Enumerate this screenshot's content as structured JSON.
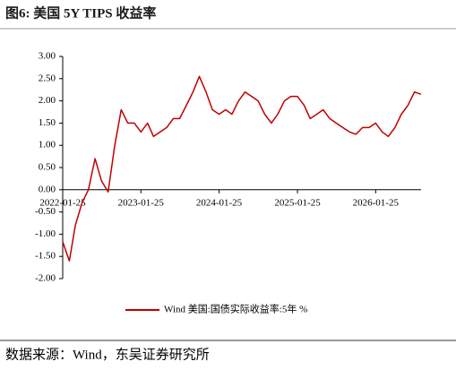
{
  "title": "图6:  美国 5Y TIPS 收益率",
  "source": "数据来源：Wind，东吴证券研究所",
  "chart_data": {
    "type": "line",
    "x": [
      "2022-01-25",
      "2022-02-25",
      "2022-03-25",
      "2022-04-25",
      "2022-05-25",
      "2022-06-25",
      "2022-07-25",
      "2022-08-25",
      "2022-09-25",
      "2022-10-25",
      "2022-11-25",
      "2022-12-25",
      "2023-01-25",
      "2023-02-25",
      "2023-03-25",
      "2023-04-25",
      "2023-05-25",
      "2023-06-25",
      "2023-07-25",
      "2023-08-25",
      "2023-09-25",
      "2023-10-25",
      "2023-11-25",
      "2023-12-25",
      "2024-01-25",
      "2024-02-25",
      "2024-03-25",
      "2024-04-25",
      "2024-05-25",
      "2024-06-25",
      "2024-07-25",
      "2024-08-25",
      "2024-09-25",
      "2024-10-25",
      "2024-11-25",
      "2024-12-25",
      "2025-01-25",
      "2025-02-25",
      "2025-03-25",
      "2025-04-25",
      "2025-05-25",
      "2025-06-25",
      "2025-07-25",
      "2025-08-25",
      "2025-09-25",
      "2025-10-25",
      "2025-11-25",
      "2025-12-25",
      "2026-01-25",
      "2026-02-25",
      "2026-03-25",
      "2026-04-25",
      "2026-05-25",
      "2026-06-25",
      "2026-07-25",
      "2026-08-25"
    ],
    "series": [
      {
        "name": "Wind 美国:国债实际收益率:5年 %",
        "color": "#c00000",
        "values": [
          -1.17,
          -1.6,
          -0.8,
          -0.3,
          0.0,
          0.7,
          0.2,
          -0.05,
          1.0,
          1.8,
          1.5,
          1.5,
          1.3,
          1.5,
          1.2,
          1.3,
          1.4,
          1.6,
          1.6,
          1.9,
          2.2,
          2.55,
          2.2,
          1.8,
          1.7,
          1.8,
          1.7,
          2.0,
          2.2,
          2.1,
          2.0,
          1.7,
          1.5,
          1.7,
          2.0,
          2.1,
          2.1,
          1.9,
          1.6,
          1.7,
          1.8,
          1.6,
          1.5,
          1.4,
          1.3,
          1.25,
          1.4,
          1.4,
          1.5,
          1.3,
          1.2,
          1.4,
          1.7,
          1.9,
          2.2,
          2.15
        ]
      }
    ],
    "xlim": [
      "2022-01-25",
      "2026-08-25"
    ],
    "xticks": [
      "2022-01-25",
      "2023-01-25",
      "2024-01-25",
      "2025-01-25",
      "2026-01-25"
    ],
    "ylim": [
      -2,
      3
    ],
    "yticks": [
      {
        "value": -2,
        "label": "-2.00"
      },
      {
        "value": -1.5,
        "label": "-1.50"
      },
      {
        "value": -1,
        "label": "-1.00"
      },
      {
        "value": -0.5,
        "label": "-0.50"
      },
      {
        "value": 0,
        "label": "0.00"
      },
      {
        "value": 0.5,
        "label": "0.50"
      },
      {
        "value": 1,
        "label": "1.00"
      },
      {
        "value": 1.5,
        "label": "1.50"
      },
      {
        "value": 2,
        "label": "2.00"
      },
      {
        "value": 2.5,
        "label": "2.50"
      },
      {
        "value": 3,
        "label": "3.00"
      }
    ]
  }
}
